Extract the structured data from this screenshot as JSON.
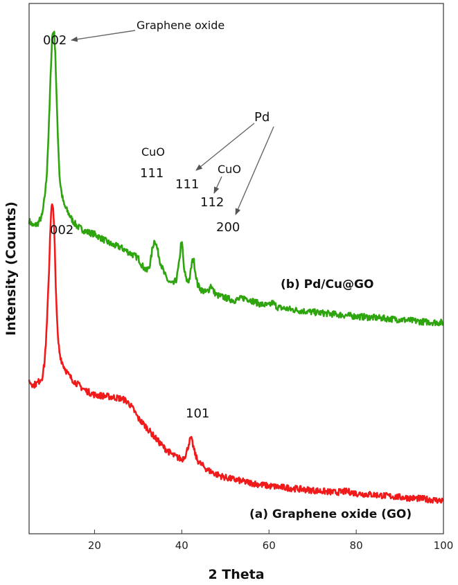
{
  "chart_data": {
    "type": "line",
    "xlabel": "2 Theta",
    "ylabel": "Intensity (Counts)",
    "xlim": [
      5,
      100
    ],
    "xticks": [
      20,
      40,
      60,
      80,
      100
    ],
    "y_ticks_shown": false,
    "grid": false,
    "series": [
      {
        "name": "(b) Pd/Cu@GO",
        "color": "#2ea40e",
        "x": [
          5,
          6,
          7,
          8,
          8.5,
          9,
          9.5,
          10,
          10.3,
          10.7,
          11,
          11.3,
          11.7,
          12,
          12.5,
          13,
          14,
          15,
          16,
          18,
          20,
          22,
          24,
          26,
          28,
          30,
          31,
          32,
          32.8,
          33.3,
          33.8,
          34.3,
          35,
          36,
          37,
          38,
          38.8,
          39.4,
          39.8,
          40.1,
          40.5,
          41,
          41.5,
          41.9,
          42.3,
          42.7,
          43.1,
          43.6,
          44.5,
          45.5,
          46.2,
          46.7,
          47.3,
          48,
          50,
          52,
          54.5,
          56,
          58,
          60,
          60.8,
          62,
          65,
          68,
          70,
          75,
          80,
          85,
          90,
          95,
          100
        ],
        "y": [
          0.59,
          0.58,
          0.585,
          0.6,
          0.63,
          0.67,
          0.76,
          0.88,
          0.94,
          0.95,
          0.91,
          0.82,
          0.73,
          0.67,
          0.64,
          0.62,
          0.605,
          0.59,
          0.58,
          0.57,
          0.565,
          0.555,
          0.545,
          0.54,
          0.53,
          0.52,
          0.505,
          0.495,
          0.51,
          0.54,
          0.555,
          0.54,
          0.515,
          0.49,
          0.475,
          0.47,
          0.48,
          0.51,
          0.545,
          0.545,
          0.5,
          0.48,
          0.475,
          0.485,
          0.51,
          0.52,
          0.495,
          0.47,
          0.46,
          0.455,
          0.46,
          0.47,
          0.457,
          0.45,
          0.445,
          0.44,
          0.445,
          0.44,
          0.433,
          0.43,
          0.436,
          0.427,
          0.423,
          0.42,
          0.418,
          0.414,
          0.41,
          0.407,
          0.404,
          0.4,
          0.398
        ]
      },
      {
        "name": "(a) Graphene oxide (GO)",
        "color": "#f01a1a",
        "x": [
          5,
          6,
          7,
          8,
          8.5,
          9,
          9.5,
          9.8,
          10.1,
          10.5,
          10.9,
          11.2,
          11.6,
          12,
          12.5,
          13,
          14,
          15,
          16,
          17,
          18,
          19,
          20,
          22,
          24,
          26,
          27,
          28,
          29,
          30,
          32,
          34,
          36,
          38,
          40,
          41,
          41.7,
          42.1,
          42.5,
          42.9,
          43.5,
          44.3,
          46,
          48,
          50,
          55,
          60,
          65,
          70,
          75,
          78,
          80,
          85,
          90,
          95,
          100
        ],
        "y": [
          0.288,
          0.28,
          0.285,
          0.295,
          0.32,
          0.38,
          0.48,
          0.56,
          0.62,
          0.615,
          0.54,
          0.44,
          0.37,
          0.34,
          0.325,
          0.315,
          0.3,
          0.29,
          0.283,
          0.276,
          0.27,
          0.266,
          0.262,
          0.26,
          0.258,
          0.255,
          0.252,
          0.245,
          0.233,
          0.218,
          0.2,
          0.18,
          0.162,
          0.148,
          0.14,
          0.15,
          0.173,
          0.18,
          0.17,
          0.155,
          0.14,
          0.132,
          0.12,
          0.112,
          0.106,
          0.097,
          0.09,
          0.086,
          0.082,
          0.078,
          0.08,
          0.076,
          0.073,
          0.069,
          0.066,
          0.062
        ]
      }
    ],
    "annotations": {
      "go_002_top": "002",
      "graphene_oxide": "Graphene oxide",
      "cuo_left": "CuO",
      "cuo_111": "111",
      "pd_111": "111",
      "pd": "Pd",
      "cuo_right": "CuO",
      "cuo_112": "112",
      "pd_200": "200",
      "go_002_bottom": "002",
      "go_101": "101"
    }
  }
}
